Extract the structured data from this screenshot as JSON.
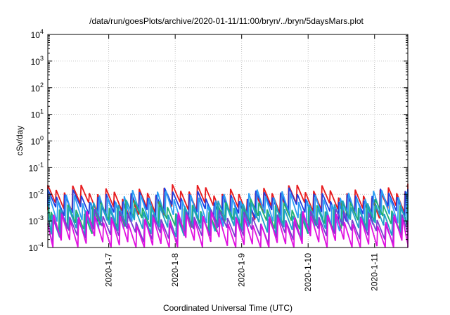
{
  "chart_data": {
    "type": "line",
    "title": "/data/run/goesPlots/archive/2020-01-11/11:00/bryn/../bryn/5daysMars.plot",
    "xlabel": "Coordinated Universal Time (UTC)",
    "ylabel": "cSv/day",
    "yscale": "log",
    "ylim": [
      0.0001,
      10000
    ],
    "y_ticks": [
      {
        "base": "10",
        "exp": "-4",
        "value": 0.0001
      },
      {
        "base": "10",
        "exp": "-3",
        "value": 0.001
      },
      {
        "base": "10",
        "exp": "-2",
        "value": 0.01
      },
      {
        "base": "10",
        "exp": "-1",
        "value": 0.1
      },
      {
        "base": "10",
        "exp": "0",
        "value": 1
      },
      {
        "base": "10",
        "exp": "1",
        "value": 10
      },
      {
        "base": "10",
        "exp": "2",
        "value": 100
      },
      {
        "base": "10",
        "exp": "3",
        "value": 1000
      },
      {
        "base": "10",
        "exp": "4",
        "value": 10000
      }
    ],
    "xlim": [
      "2020-01-06 02:00",
      "2020-01-11 12:00"
    ],
    "x_ticks": [
      "2020-1-7",
      "2020-1-8",
      "2020-1-9",
      "2020-1-10",
      "2020-1-11"
    ],
    "grid": true,
    "legend": "none",
    "sawtooth": {
      "period_hours": 3,
      "note_values": "each series repeats a sawtooth: rises to its peak then decays to its trough every ~3 hours",
      "series": [
        {
          "color": "#e8191c",
          "peak": 0.013,
          "trough": 0.0025,
          "phase_hours": 0.0
        },
        {
          "color": "#1f3fe0",
          "peak": 0.009,
          "trough": 0.0018,
          "phase_hours": 0.1
        },
        {
          "color": "#2a9df4",
          "peak": 0.008,
          "trough": 0.0009,
          "phase_hours": 0.6
        },
        {
          "color": "#20b070",
          "peak": 0.0035,
          "trough": 0.0007,
          "phase_hours": 1.2
        },
        {
          "color": "#1fa0c8",
          "peak": 0.003,
          "trough": 0.0005,
          "phase_hours": 1.5
        },
        {
          "color": "#7a3fd0",
          "peak": 0.0015,
          "trough": 0.0003,
          "phase_hours": 1.9
        },
        {
          "color": "#e010e0",
          "peak": 0.0012,
          "trough": 0.00012,
          "phase_hours": 2.1
        }
      ]
    }
  }
}
